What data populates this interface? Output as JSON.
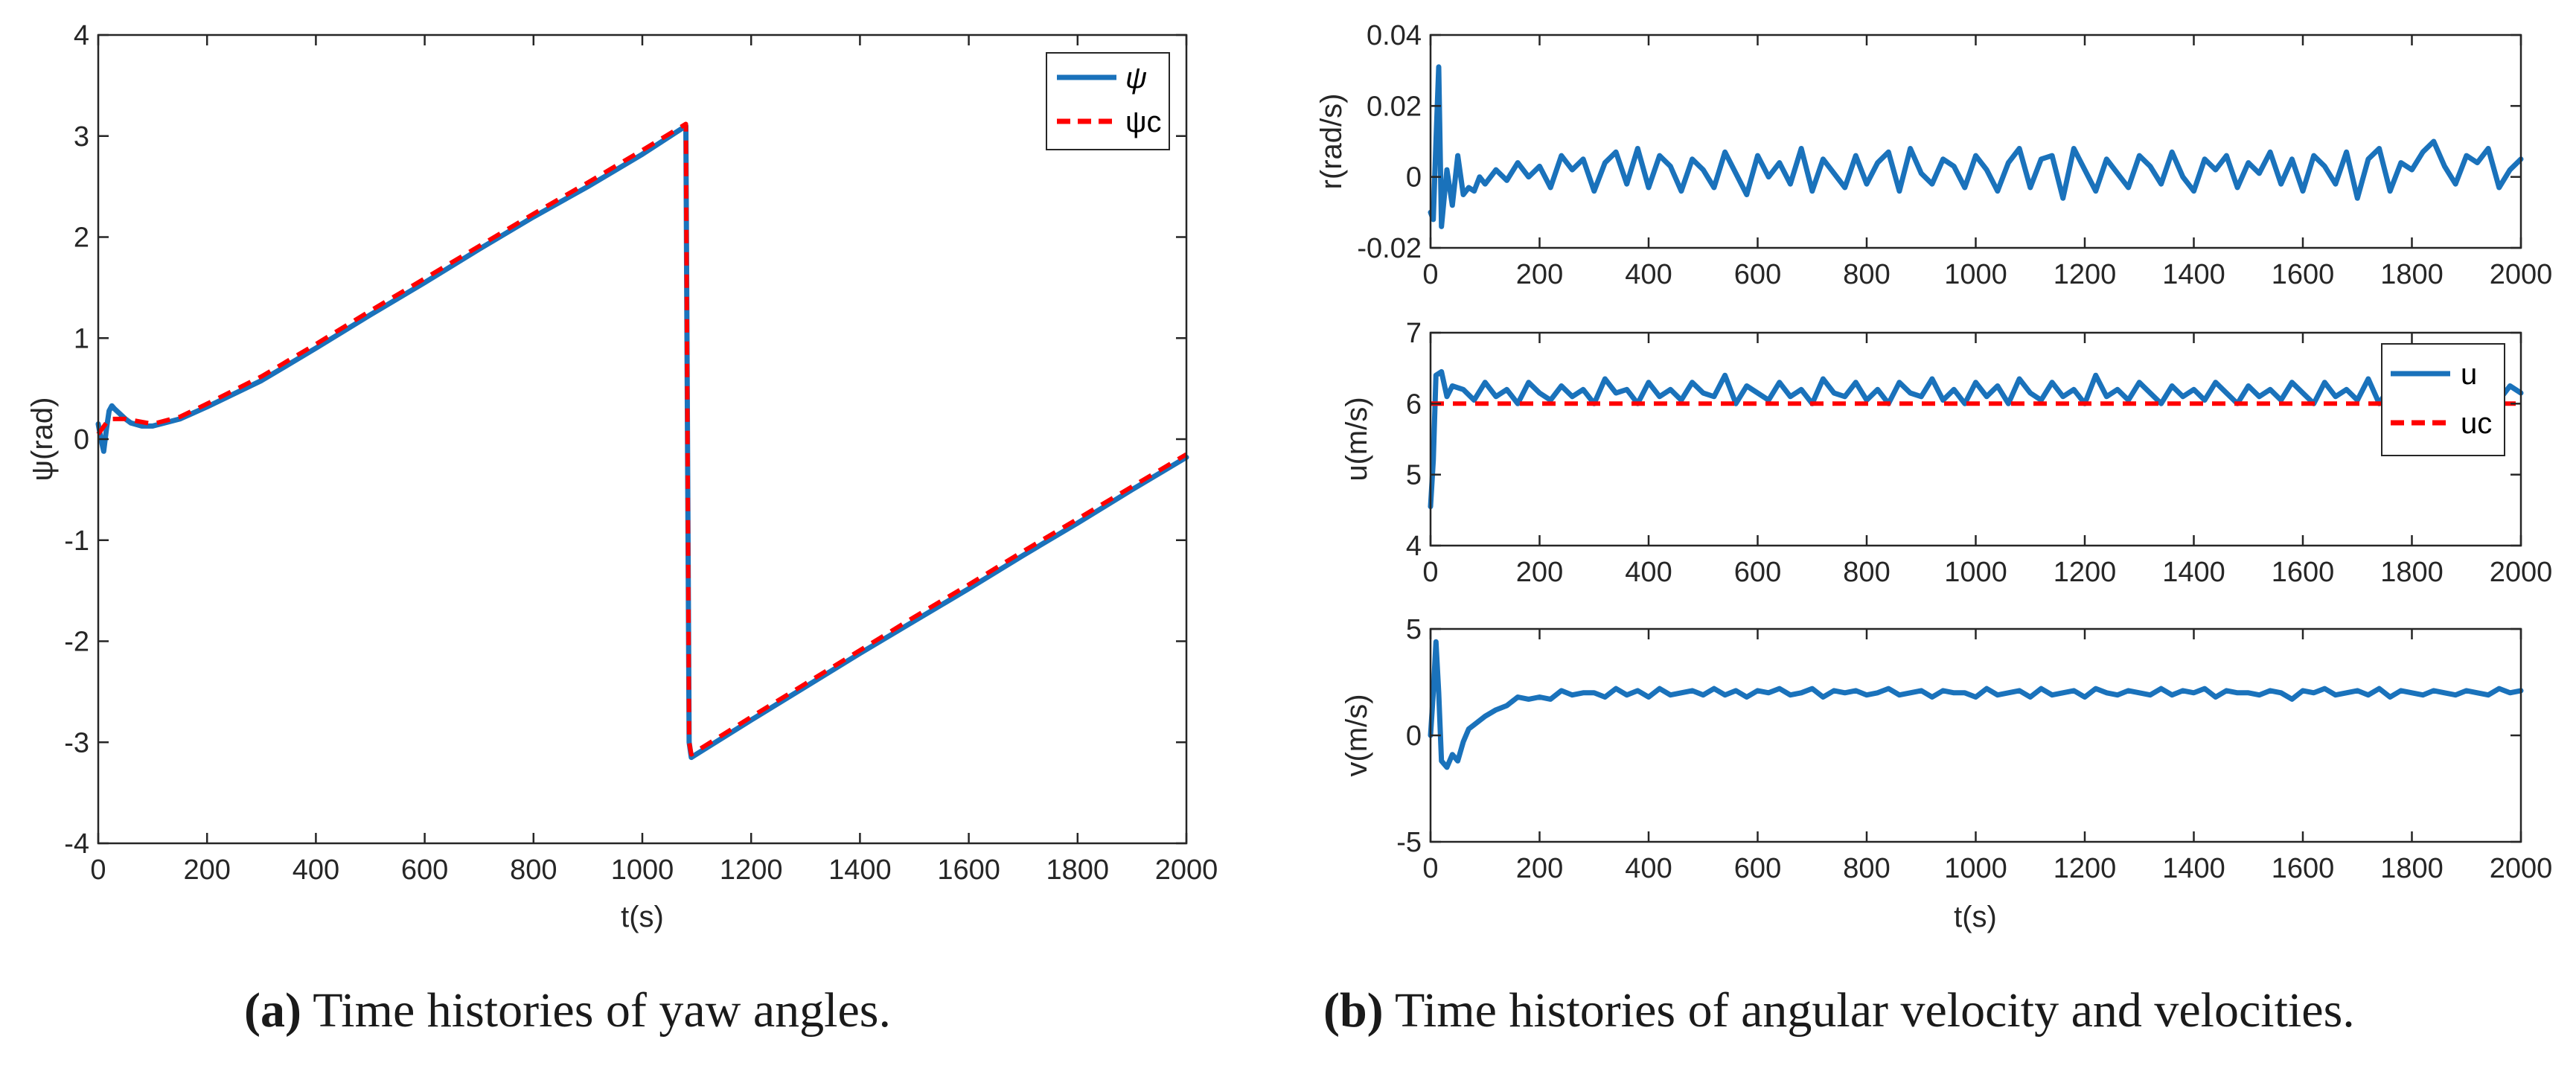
{
  "colors": {
    "series": "#1a72bb",
    "command": "#ff0000",
    "axis": "#262626"
  },
  "captions": {
    "a": {
      "label": "(a)",
      "text": "Time histories of yaw angles."
    },
    "b": {
      "label": "(b)",
      "text": "Time histories of angular velocity and velocities."
    }
  },
  "chart_data": [
    {
      "id": "yaw",
      "type": "line",
      "xlabel": "t(s)",
      "ylabel": "ψ(rad)",
      "xlim": [
        0,
        2000
      ],
      "ylim": [
        -4,
        4
      ],
      "xticks": [
        0,
        200,
        400,
        600,
        800,
        1000,
        1200,
        1400,
        1600,
        1800,
        2000
      ],
      "yticks": [
        -4,
        -3,
        -2,
        -1,
        0,
        1,
        2,
        3,
        4
      ],
      "legend": {
        "position": "top-right",
        "entries": [
          "ψ",
          "ψc"
        ]
      },
      "series": [
        {
          "name": "ψ",
          "style": "solid",
          "x": [
            0,
            5,
            10,
            15,
            20,
            25,
            30,
            40,
            50,
            60,
            80,
            100,
            150,
            200,
            300,
            400,
            500,
            600,
            700,
            800,
            900,
            1000,
            1080,
            1083,
            1086,
            1090,
            1200,
            1300,
            1400,
            1500,
            1600,
            1700,
            1800,
            1900,
            2000
          ],
          "y": [
            0.15,
            0.0,
            -0.12,
            0.1,
            0.28,
            0.33,
            0.3,
            0.25,
            0.2,
            0.16,
            0.13,
            0.13,
            0.2,
            0.32,
            0.58,
            0.9,
            1.23,
            1.55,
            1.88,
            2.2,
            2.5,
            2.82,
            3.1,
            0.0,
            -3.0,
            -3.15,
            -2.78,
            -2.45,
            -2.12,
            -1.8,
            -1.48,
            -1.15,
            -0.83,
            -0.5,
            -0.18
          ]
        },
        {
          "name": "ψc",
          "style": "dashed",
          "x": [
            0,
            20,
            50,
            100,
            150,
            200,
            300,
            400,
            500,
            600,
            700,
            800,
            900,
            1000,
            1080,
            1083,
            1086,
            1090,
            1200,
            1300,
            1400,
            1500,
            1600,
            1700,
            1800,
            1900,
            2000
          ],
          "y": [
            0.05,
            0.2,
            0.2,
            0.15,
            0.22,
            0.35,
            0.62,
            0.94,
            1.27,
            1.59,
            1.91,
            2.23,
            2.54,
            2.86,
            3.12,
            0.0,
            -3.0,
            -3.12,
            -2.75,
            -2.42,
            -2.09,
            -1.76,
            -1.44,
            -1.11,
            -0.79,
            -0.47,
            -0.15
          ]
        }
      ]
    },
    {
      "id": "r",
      "type": "line",
      "xlabel": "",
      "ylabel": "r(rad/s)",
      "xlim": [
        0,
        2000
      ],
      "ylim": [
        -0.02,
        0.04
      ],
      "xticks": [
        0,
        200,
        400,
        600,
        800,
        1000,
        1200,
        1400,
        1600,
        1800,
        2000
      ],
      "yticks": [
        -0.02,
        0,
        0.02,
        0.04
      ],
      "ytick_labels": [
        "-0.02",
        "0",
        "0.02",
        "0.04"
      ],
      "series": [
        {
          "name": "",
          "style": "solid",
          "x": [
            0,
            5,
            10,
            15,
            20,
            25,
            30,
            40,
            50,
            60,
            70,
            80,
            90,
            100,
            120,
            140,
            160,
            180,
            200,
            220,
            240,
            260,
            280,
            300,
            320,
            340,
            360,
            380,
            400,
            420,
            440,
            460,
            480,
            500,
            520,
            540,
            560,
            580,
            600,
            620,
            640,
            660,
            680,
            700,
            720,
            740,
            760,
            780,
            800,
            820,
            840,
            860,
            880,
            900,
            920,
            940,
            960,
            980,
            1000,
            1020,
            1040,
            1060,
            1080,
            1100,
            1120,
            1140,
            1160,
            1180,
            1200,
            1220,
            1240,
            1260,
            1280,
            1300,
            1320,
            1340,
            1360,
            1380,
            1400,
            1420,
            1440,
            1460,
            1480,
            1500,
            1520,
            1540,
            1560,
            1580,
            1600,
            1620,
            1640,
            1660,
            1680,
            1700,
            1720,
            1740,
            1760,
            1780,
            1800,
            1820,
            1840,
            1860,
            1880,
            1900,
            1920,
            1940,
            1960,
            1980,
            2000
          ],
          "y": [
            -0.01,
            -0.012,
            0.01,
            0.031,
            -0.014,
            -0.006,
            0.002,
            -0.008,
            0.006,
            -0.005,
            -0.003,
            -0.004,
            0.0,
            -0.002,
            0.002,
            -0.001,
            0.004,
            0.0,
            0.003,
            -0.003,
            0.006,
            0.002,
            0.005,
            -0.004,
            0.004,
            0.007,
            -0.002,
            0.008,
            -0.003,
            0.006,
            0.003,
            -0.004,
            0.005,
            0.002,
            -0.003,
            0.007,
            0.001,
            -0.005,
            0.006,
            0.0,
            0.004,
            -0.002,
            0.008,
            -0.004,
            0.005,
            0.001,
            -0.003,
            0.006,
            -0.002,
            0.004,
            0.007,
            -0.004,
            0.008,
            0.001,
            -0.002,
            0.005,
            0.003,
            -0.003,
            0.006,
            0.002,
            -0.004,
            0.004,
            0.008,
            -0.003,
            0.005,
            0.006,
            -0.006,
            0.008,
            0.002,
            -0.004,
            0.005,
            0.001,
            -0.003,
            0.006,
            0.003,
            -0.002,
            0.007,
            0.0,
            -0.004,
            0.005,
            0.002,
            0.006,
            -0.003,
            0.004,
            0.001,
            0.007,
            -0.002,
            0.005,
            -0.004,
            0.006,
            0.003,
            -0.002,
            0.007,
            -0.006,
            0.005,
            0.008,
            -0.004,
            0.004,
            0.002,
            0.007,
            0.01,
            0.003,
            -0.002,
            0.006,
            0.004,
            0.008,
            -0.003,
            0.002,
            0.005
          ]
        }
      ]
    },
    {
      "id": "u",
      "type": "line",
      "xlabel": "",
      "ylabel": "u(m/s)",
      "xlim": [
        0,
        2000
      ],
      "ylim": [
        4,
        7
      ],
      "xticks": [
        0,
        200,
        400,
        600,
        800,
        1000,
        1200,
        1400,
        1600,
        1800,
        2000
      ],
      "yticks": [
        4,
        5,
        6,
        7
      ],
      "legend": {
        "position": "top-right",
        "entries": [
          "u",
          "uc"
        ]
      },
      "series": [
        {
          "name": "u",
          "style": "solid",
          "x": [
            0,
            5,
            10,
            20,
            30,
            40,
            60,
            80,
            100,
            120,
            140,
            160,
            180,
            200,
            220,
            240,
            260,
            280,
            300,
            320,
            340,
            360,
            380,
            400,
            420,
            440,
            460,
            480,
            500,
            520,
            540,
            560,
            580,
            600,
            620,
            640,
            660,
            680,
            700,
            720,
            740,
            760,
            780,
            800,
            820,
            840,
            860,
            880,
            900,
            920,
            940,
            960,
            980,
            1000,
            1020,
            1040,
            1060,
            1080,
            1100,
            1120,
            1140,
            1160,
            1180,
            1200,
            1220,
            1240,
            1260,
            1280,
            1300,
            1320,
            1340,
            1360,
            1380,
            1400,
            1420,
            1440,
            1460,
            1480,
            1500,
            1520,
            1540,
            1560,
            1580,
            1600,
            1620,
            1640,
            1660,
            1680,
            1700,
            1720,
            1740,
            1760,
            1780,
            1800,
            1820,
            1840,
            1860,
            1880,
            1900,
            1920,
            1940,
            1960,
            1980,
            2000
          ],
          "y": [
            4.55,
            5.2,
            6.4,
            6.45,
            6.1,
            6.25,
            6.2,
            6.05,
            6.3,
            6.1,
            6.2,
            6.0,
            6.3,
            6.15,
            6.05,
            6.25,
            6.1,
            6.2,
            6.0,
            6.35,
            6.15,
            6.2,
            6.0,
            6.3,
            6.1,
            6.2,
            6.05,
            6.3,
            6.15,
            6.1,
            6.4,
            6.0,
            6.25,
            6.15,
            6.05,
            6.3,
            6.1,
            6.2,
            6.0,
            6.35,
            6.15,
            6.1,
            6.3,
            6.05,
            6.2,
            6.0,
            6.3,
            6.15,
            6.1,
            6.35,
            6.05,
            6.2,
            6.0,
            6.3,
            6.1,
            6.25,
            6.0,
            6.35,
            6.15,
            6.05,
            6.3,
            6.1,
            6.2,
            6.0,
            6.4,
            6.1,
            6.2,
            6.05,
            6.3,
            6.15,
            6.0,
            6.25,
            6.1,
            6.2,
            6.05,
            6.3,
            6.15,
            6.0,
            6.25,
            6.1,
            6.2,
            6.05,
            6.3,
            6.15,
            6.0,
            6.3,
            6.1,
            6.2,
            6.05,
            6.35,
            6.0,
            6.25,
            6.1,
            6.2,
            6.05,
            6.3,
            6.15,
            6.0,
            6.25,
            6.1,
            6.2,
            6.05,
            6.25,
            6.15
          ]
        },
        {
          "name": "uc",
          "style": "dashed",
          "x": [
            0,
            2000
          ],
          "y": [
            6,
            6
          ]
        }
      ]
    },
    {
      "id": "v",
      "type": "line",
      "xlabel": "t(s)",
      "ylabel": "v(m/s)",
      "xlim": [
        0,
        2000
      ],
      "ylim": [
        -5,
        5
      ],
      "xticks": [
        0,
        200,
        400,
        600,
        800,
        1000,
        1200,
        1400,
        1600,
        1800,
        2000
      ],
      "yticks": [
        -5,
        0,
        5
      ],
      "series": [
        {
          "name": "",
          "style": "solid",
          "x": [
            0,
            5,
            10,
            15,
            20,
            30,
            40,
            50,
            60,
            70,
            80,
            100,
            120,
            140,
            160,
            180,
            200,
            220,
            240,
            260,
            280,
            300,
            320,
            340,
            360,
            380,
            400,
            420,
            440,
            460,
            480,
            500,
            520,
            540,
            560,
            580,
            600,
            620,
            640,
            660,
            680,
            700,
            720,
            740,
            760,
            780,
            800,
            820,
            840,
            860,
            880,
            900,
            920,
            940,
            960,
            980,
            1000,
            1020,
            1040,
            1060,
            1080,
            1100,
            1120,
            1140,
            1160,
            1180,
            1200,
            1220,
            1240,
            1260,
            1280,
            1300,
            1320,
            1340,
            1360,
            1380,
            1400,
            1420,
            1440,
            1460,
            1480,
            1500,
            1520,
            1540,
            1560,
            1580,
            1600,
            1620,
            1640,
            1660,
            1680,
            1700,
            1720,
            1740,
            1760,
            1780,
            1800,
            1820,
            1840,
            1860,
            1880,
            1900,
            1920,
            1940,
            1960,
            1980,
            2000
          ],
          "y": [
            0.0,
            2.0,
            4.4,
            2.0,
            -1.2,
            -1.5,
            -0.9,
            -1.2,
            -0.3,
            0.3,
            0.5,
            0.9,
            1.2,
            1.4,
            1.8,
            1.7,
            1.8,
            1.7,
            2.1,
            1.9,
            2.0,
            2.0,
            1.8,
            2.2,
            1.9,
            2.1,
            1.8,
            2.2,
            1.9,
            2.0,
            2.1,
            1.9,
            2.2,
            1.9,
            2.1,
            1.8,
            2.1,
            2.0,
            2.2,
            1.9,
            2.0,
            2.2,
            1.8,
            2.1,
            2.0,
            2.1,
            1.9,
            2.0,
            2.2,
            1.9,
            2.0,
            2.1,
            1.8,
            2.1,
            2.0,
            2.0,
            1.8,
            2.2,
            1.9,
            2.0,
            2.1,
            1.8,
            2.2,
            1.9,
            2.0,
            2.1,
            1.8,
            2.2,
            2.0,
            1.9,
            2.1,
            2.0,
            1.9,
            2.2,
            1.9,
            2.1,
            2.0,
            2.2,
            1.8,
            2.1,
            2.0,
            2.0,
            1.9,
            2.1,
            2.0,
            1.7,
            2.1,
            2.0,
            2.2,
            1.9,
            2.0,
            2.1,
            1.9,
            2.2,
            1.8,
            2.1,
            2.0,
            1.9,
            2.1,
            2.0,
            1.9,
            2.1,
            2.0,
            1.9,
            2.2,
            2.0,
            2.1
          ]
        }
      ]
    }
  ]
}
